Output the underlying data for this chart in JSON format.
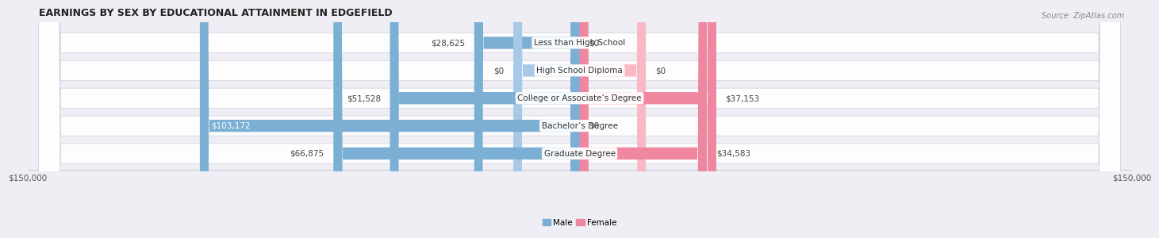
{
  "title": "EARNINGS BY SEX BY EDUCATIONAL ATTAINMENT IN EDGEFIELD",
  "source": "Source: ZipAtlas.com",
  "categories": [
    "Less than High School",
    "High School Diploma",
    "College or Associate’s Degree",
    "Bachelor’s Degree",
    "Graduate Degree"
  ],
  "male_values": [
    28625,
    0,
    51528,
    103172,
    66875
  ],
  "female_values": [
    0,
    0,
    37153,
    0,
    34583
  ],
  "male_labels": [
    "$28,625",
    "$0",
    "$51,528",
    "$103,172",
    "$66,875"
  ],
  "female_labels": [
    "$0",
    "$0",
    "$37,153",
    "$0",
    "$34,583"
  ],
  "male_color": "#7bafd4",
  "female_color": "#f087a0",
  "male_color_stub": "#a8c8e8",
  "female_color_stub": "#f9b8c4",
  "axis_limit": 150000,
  "axis_label_left": "$150,000",
  "axis_label_right": "$150,000",
  "background_color": "#eeeef4",
  "row_bg_color": "#ffffff",
  "title_fontsize": 9,
  "source_fontsize": 7,
  "bar_label_fontsize": 7.5,
  "category_fontsize": 7.5,
  "stub_value": 8000,
  "high_school_male": 18000,
  "high_school_female": 18000
}
